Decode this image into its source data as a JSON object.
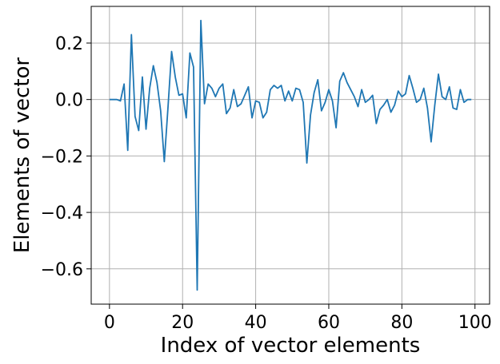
{
  "chart_data": {
    "type": "line",
    "title": "",
    "xlabel": "Index of vector elements",
    "ylabel": "Elements of vector",
    "xlim": [
      -5,
      104
    ],
    "ylim": [
      -0.725,
      0.33
    ],
    "xticks": [
      0,
      20,
      40,
      60,
      80,
      100
    ],
    "xtick_labels": [
      "0",
      "20",
      "40",
      "60",
      "80",
      "100"
    ],
    "yticks": [
      0.2,
      0.0,
      -0.2,
      -0.4,
      -0.6
    ],
    "ytick_labels": [
      "0.2",
      "0.0",
      "−0.2",
      "−0.4",
      "−0.6"
    ],
    "grid": true,
    "series": [
      {
        "color": "#1f77b4",
        "x": [
          0,
          1,
          2,
          3,
          4,
          5,
          6,
          7,
          8,
          9,
          10,
          11,
          12,
          13,
          14,
          15,
          16,
          17,
          18,
          19,
          20,
          21,
          22,
          23,
          24,
          25,
          26,
          27,
          28,
          29,
          30,
          31,
          32,
          33,
          34,
          35,
          36,
          37,
          38,
          39,
          40,
          41,
          42,
          43,
          44,
          45,
          46,
          47,
          48,
          49,
          50,
          51,
          52,
          53,
          54,
          55,
          56,
          57,
          58,
          59,
          60,
          61,
          62,
          63,
          64,
          65,
          66,
          67,
          68,
          69,
          70,
          71,
          72,
          73,
          74,
          75,
          76,
          77,
          78,
          79,
          80,
          81,
          82,
          83,
          84,
          85,
          86,
          87,
          88,
          89,
          90,
          91,
          92,
          93,
          94,
          95,
          96,
          97,
          98,
          99
        ],
        "y": [
          0.0,
          0.0,
          0.0,
          -0.005,
          0.055,
          -0.18,
          0.23,
          -0.06,
          -0.11,
          0.08,
          -0.105,
          0.04,
          0.12,
          0.06,
          -0.04,
          -0.22,
          -0.03,
          0.17,
          0.08,
          0.015,
          0.02,
          -0.065,
          0.165,
          0.115,
          -0.675,
          0.28,
          -0.015,
          0.055,
          0.04,
          0.01,
          0.04,
          0.055,
          -0.05,
          -0.03,
          0.035,
          -0.025,
          -0.015,
          0.015,
          0.045,
          -0.065,
          -0.005,
          -0.01,
          -0.065,
          -0.045,
          0.035,
          0.05,
          0.04,
          0.05,
          -0.005,
          0.03,
          -0.005,
          0.04,
          0.035,
          -0.01,
          -0.225,
          -0.055,
          0.025,
          0.07,
          -0.04,
          -0.01,
          0.035,
          -0.005,
          -0.1,
          0.065,
          0.095,
          0.06,
          0.035,
          0.01,
          -0.025,
          0.035,
          -0.01,
          0.0,
          0.015,
          -0.085,
          -0.035,
          -0.02,
          0.0,
          -0.045,
          -0.02,
          0.03,
          0.01,
          0.02,
          0.085,
          0.04,
          -0.01,
          0.0,
          0.04,
          -0.03,
          -0.15,
          -0.02,
          0.09,
          0.01,
          0.0,
          0.045,
          -0.03,
          -0.035,
          0.035,
          -0.01,
          0.0,
          0.0
        ]
      }
    ]
  }
}
